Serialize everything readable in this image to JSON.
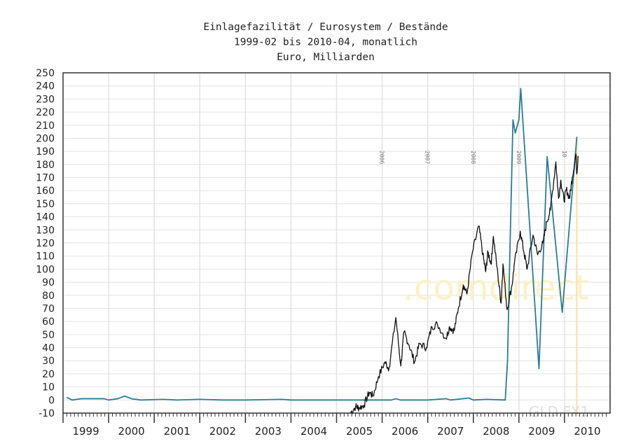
{
  "chart_data": {
    "type": "line",
    "title": [
      "Einlagefazilität / Eurosystem / Bestände",
      "1999-02 bis 2010-04, monatlich",
      "Euro, Milliarden"
    ],
    "xlabel": "",
    "ylabel": "",
    "xlim": [
      1999.0,
      2011.0
    ],
    "ylim": [
      -10,
      250
    ],
    "yticks": [
      -10,
      0,
      10,
      20,
      30,
      40,
      50,
      60,
      70,
      80,
      90,
      100,
      110,
      120,
      130,
      140,
      150,
      160,
      170,
      180,
      190,
      200,
      210,
      220,
      230,
      240,
      250
    ],
    "xtick_labels": [
      "1999",
      "2000",
      "2001",
      "2002",
      "2003",
      "2004",
      "2005",
      "2006",
      "2007",
      "2008",
      "2009",
      "2010"
    ],
    "grid": true,
    "overlay_year_labels": [
      "2006",
      "2007",
      "2008",
      "2009",
      "10"
    ],
    "watermark": ".comdirect",
    "overlay_symbol": "GLD.FX1",
    "colors": {
      "primary": "#2a7d95",
      "overlay": "#111111",
      "marker": "#f7dfa0",
      "grid": "#e2e2e2"
    },
    "series": [
      {
        "name": "Einlagefazilität",
        "color": "#2a7d95",
        "points": [
          [
            1999.08,
            2
          ],
          [
            1999.2,
            0
          ],
          [
            1999.4,
            1
          ],
          [
            1999.9,
            1
          ],
          [
            2000.0,
            0
          ],
          [
            2000.2,
            1
          ],
          [
            2000.35,
            3
          ],
          [
            2000.5,
            1
          ],
          [
            2000.7,
            0
          ],
          [
            2001.2,
            0.5
          ],
          [
            2001.5,
            0
          ],
          [
            2002.0,
            0.5
          ],
          [
            2002.5,
            0
          ],
          [
            2003.0,
            0
          ],
          [
            2003.8,
            0.5
          ],
          [
            2004.0,
            0
          ],
          [
            2005.0,
            0
          ],
          [
            2006.2,
            0
          ],
          [
            2006.3,
            1
          ],
          [
            2006.4,
            0
          ],
          [
            2007.0,
            0
          ],
          [
            2007.4,
            1
          ],
          [
            2007.5,
            0
          ],
          [
            2007.9,
            1.5
          ],
          [
            2008.0,
            0
          ],
          [
            2008.3,
            0.5
          ],
          [
            2008.7,
            0
          ],
          [
            2008.75,
            30
          ],
          [
            2008.8,
            110
          ],
          [
            2008.87,
            214
          ],
          [
            2008.92,
            204
          ],
          [
            2009.0,
            214
          ],
          [
            2009.04,
            238
          ],
          [
            2009.44,
            24
          ],
          [
            2009.62,
            186
          ],
          [
            2009.95,
            67
          ],
          [
            2010.27,
            201
          ]
        ]
      },
      {
        "name": "GLD.FX1",
        "color": "#111111",
        "points": [
          [
            2005.3,
            -10
          ],
          [
            2005.42,
            -5
          ],
          [
            2005.49,
            -6
          ],
          [
            2005.6,
            -4
          ],
          [
            2005.72,
            6
          ],
          [
            2005.8,
            3
          ],
          [
            2005.92,
            18
          ],
          [
            2006.06,
            29
          ],
          [
            2006.15,
            24
          ],
          [
            2006.3,
            63
          ],
          [
            2006.41,
            26
          ],
          [
            2006.48,
            52
          ],
          [
            2006.59,
            42
          ],
          [
            2006.71,
            29
          ],
          [
            2006.82,
            43
          ],
          [
            2006.97,
            40
          ],
          [
            2007.09,
            56
          ],
          [
            2007.21,
            58
          ],
          [
            2007.4,
            47
          ],
          [
            2007.48,
            56
          ],
          [
            2007.58,
            53
          ],
          [
            2007.67,
            70
          ],
          [
            2007.78,
            88
          ],
          [
            2007.86,
            81
          ],
          [
            2007.98,
            113
          ],
          [
            2008.12,
            133
          ],
          [
            2008.21,
            111
          ],
          [
            2008.27,
            98
          ],
          [
            2008.32,
            113
          ],
          [
            2008.39,
            104
          ],
          [
            2008.44,
            125
          ],
          [
            2008.54,
            95
          ],
          [
            2008.61,
            74
          ],
          [
            2008.65,
            104
          ],
          [
            2008.74,
            69
          ],
          [
            2008.85,
            88
          ],
          [
            2008.9,
            104
          ],
          [
            2009.03,
            129
          ],
          [
            2009.11,
            113
          ],
          [
            2009.18,
            100
          ],
          [
            2009.31,
            126
          ],
          [
            2009.41,
            111
          ],
          [
            2009.53,
            120
          ],
          [
            2009.61,
            136
          ],
          [
            2009.69,
            145
          ],
          [
            2009.81,
            182
          ],
          [
            2009.87,
            154
          ],
          [
            2009.92,
            168
          ],
          [
            2009.99,
            152
          ],
          [
            2010.04,
            161
          ],
          [
            2010.11,
            154
          ],
          [
            2010.17,
            170
          ],
          [
            2010.25,
            188
          ],
          [
            2010.27,
            173
          ],
          [
            2010.3,
            186
          ]
        ]
      }
    ],
    "end_marker_x": 2010.27
  }
}
